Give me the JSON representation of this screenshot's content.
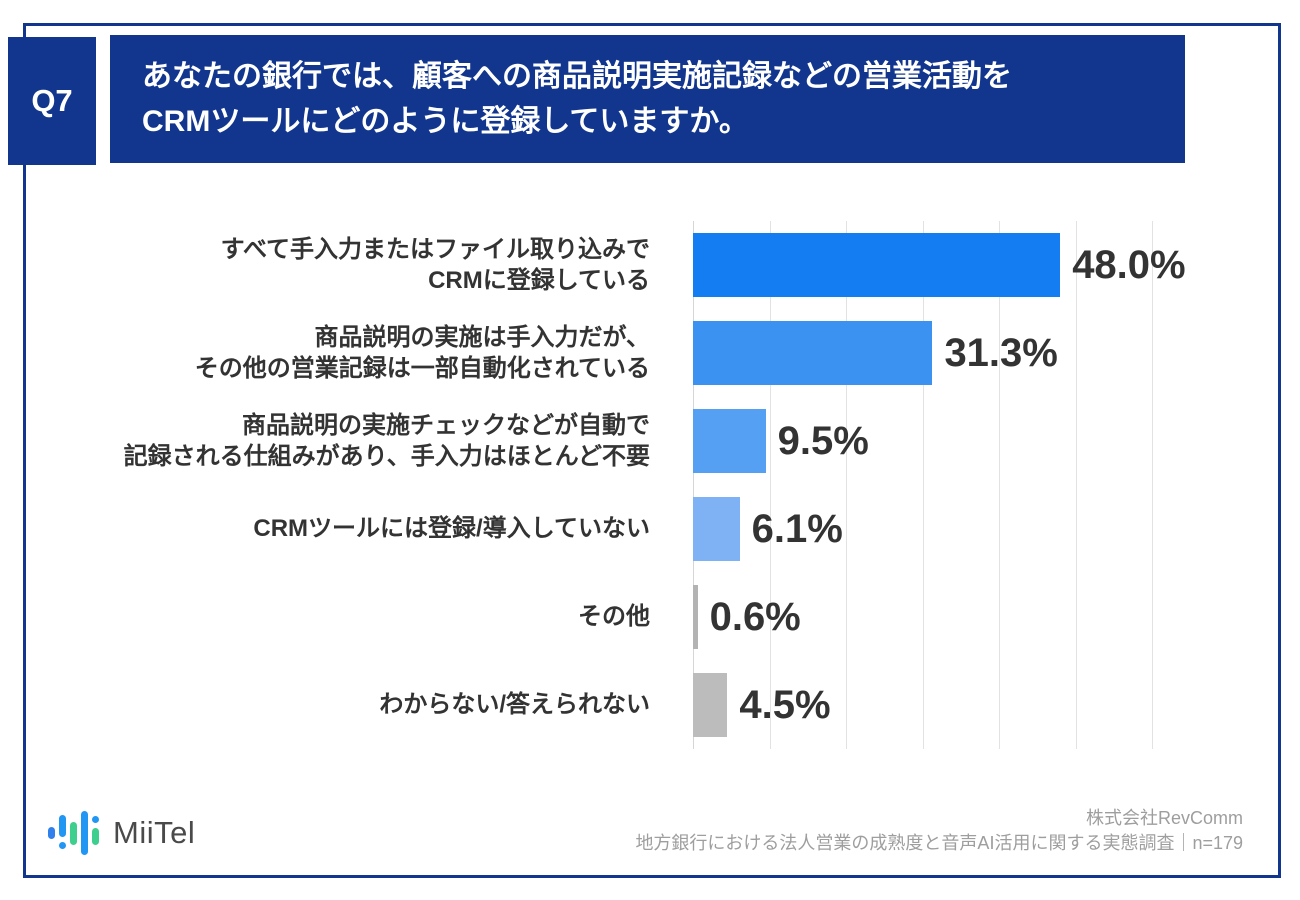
{
  "question": {
    "number": "Q7",
    "text": "あなたの銀行では、顧客への商品説明実施記録などの営業活動を\nCRMツールにどのように登録していますか。"
  },
  "chart_data": {
    "type": "bar",
    "orientation": "horizontal",
    "categories": [
      "すべて手入力またはファイル取り込みで\nCRMに登録している",
      "商品説明の実施は手入力だが、\nその他の営業記録は一部自動化されている",
      "商品説明の実施チェックなどが自動で\n記録される仕組みがあり、手入力はほとんど不要",
      "CRMツールには登録/導入していない",
      "その他",
      "わからない/答えられない"
    ],
    "values": [
      48.0,
      31.3,
      9.5,
      6.1,
      0.6,
      4.5
    ],
    "value_labels": [
      "48.0%",
      "31.3%",
      "9.5%",
      "6.1%",
      "0.6%",
      "4.5%"
    ],
    "bar_colors": [
      "#157df2",
      "#3b92f0",
      "#55a0f2",
      "#7fb1f5",
      "#b3b3b3",
      "#bcbcbc"
    ],
    "unit": "%",
    "xlim": [
      0,
      60
    ],
    "gridline_interval": 10,
    "grid": true,
    "legend": false,
    "title": "あなたの銀行では、顧客への商品説明実施記録などの営業活動をCRMツールにどのように登録していますか。"
  },
  "footer": {
    "logo_text": "MiiTel",
    "source_line1": "株式会社RevComm",
    "source_line2": "地方銀行における法人営業の成熟度と音声AI活用に関する実態調査｜n=179"
  },
  "colors": {
    "header_bg": "#12368e",
    "frame_border": "#12368e",
    "label_text": "#333333",
    "source_text": "#9e9e9e",
    "gridline": "#e2e2e2"
  }
}
